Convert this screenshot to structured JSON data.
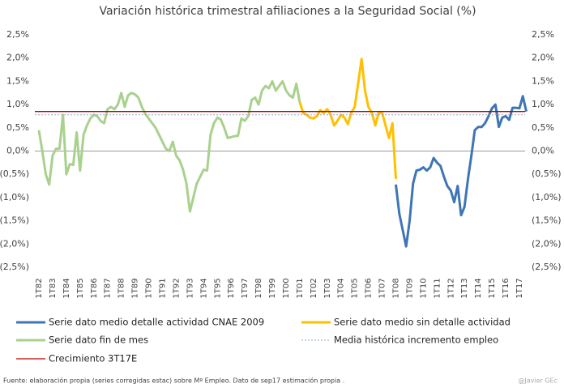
{
  "chart_data": {
    "type": "line",
    "title": "Variación histórica trimestral afiliaciones a la Seguridad Social (%)",
    "categories": [
      "1T82",
      null,
      null,
      null,
      "1T83",
      null,
      null,
      null,
      "1T84",
      null,
      null,
      null,
      "1T85",
      null,
      null,
      null,
      "1T86",
      null,
      null,
      null,
      "1T87",
      null,
      null,
      null,
      "1T88",
      null,
      null,
      null,
      "1T89",
      null,
      null,
      null,
      "1T90",
      null,
      null,
      null,
      "1T91",
      null,
      null,
      null,
      "1T92",
      null,
      null,
      null,
      "1T93",
      null,
      null,
      null,
      "1T94",
      null,
      null,
      null,
      "1T95",
      null,
      null,
      null,
      "1T96",
      null,
      null,
      null,
      "1T97",
      null,
      null,
      null,
      "1T98",
      null,
      null,
      null,
      "1T99",
      null,
      null,
      null,
      "1T00",
      null,
      null,
      null,
      "1T01",
      null,
      null,
      null,
      "1T02",
      null,
      null,
      null,
      "1T03",
      null,
      null,
      null,
      "1T04",
      null,
      null,
      null,
      "1T05",
      null,
      null,
      null,
      "1T06",
      null,
      null,
      null,
      "1T07",
      null,
      null,
      null,
      "1T08",
      null,
      null,
      null,
      "1T09",
      null,
      null,
      null,
      "1T10",
      null,
      null,
      null,
      "1T11",
      null,
      null,
      null,
      "1T12",
      null,
      null,
      null,
      "1T13",
      null,
      null,
      null,
      "1T14",
      null,
      null,
      null,
      "1T15",
      null,
      null,
      null,
      "1T16",
      null,
      null,
      null,
      "1T17",
      null,
      null
    ],
    "series": [
      {
        "name": "Serie dato fin de mes",
        "color": "#a9d18e",
        "values": [
          0.45,
          0.0,
          -0.5,
          -0.72,
          -0.1,
          0.05,
          0.05,
          0.78,
          -0.5,
          -0.28,
          -0.3,
          0.4,
          -0.42,
          0.35,
          0.55,
          0.7,
          0.78,
          0.75,
          0.65,
          0.6,
          0.9,
          0.95,
          0.9,
          1.0,
          1.25,
          0.95,
          1.2,
          1.25,
          1.22,
          1.15,
          0.95,
          0.8,
          0.7,
          0.6,
          0.5,
          0.35,
          0.2,
          0.05,
          0.0,
          0.2,
          -0.1,
          -0.2,
          -0.4,
          -0.7,
          -1.3,
          -1.0,
          -0.7,
          -0.55,
          -0.4,
          -0.42,
          0.35,
          0.6,
          0.72,
          0.68,
          0.5,
          0.28,
          0.3,
          0.32,
          0.33,
          0.7,
          0.65,
          0.75,
          1.1,
          1.15,
          1.0,
          1.3,
          1.4,
          1.35,
          1.5,
          1.3,
          1.4,
          1.5,
          1.3,
          1.2,
          1.15,
          1.45,
          1.05,
          null,
          null,
          null,
          null,
          null,
          null,
          null,
          null,
          null,
          null,
          null,
          null,
          null,
          null,
          null,
          null,
          null,
          null,
          null,
          null,
          null,
          null,
          null,
          null,
          null,
          null,
          null,
          null,
          null,
          null,
          null,
          null,
          null,
          null,
          null,
          null,
          null,
          null,
          null,
          null,
          null,
          null,
          null,
          null,
          null,
          null,
          null,
          null,
          null,
          null,
          null,
          null,
          null,
          null,
          null,
          null,
          null,
          null,
          null,
          null,
          null,
          null,
          null,
          null,
          null,
          null
        ]
      },
      {
        "name": "Serie dato medio sin detalle actividad",
        "color": "#ffc000",
        "values": [
          null,
          null,
          null,
          null,
          null,
          null,
          null,
          null,
          null,
          null,
          null,
          null,
          null,
          null,
          null,
          null,
          null,
          null,
          null,
          null,
          null,
          null,
          null,
          null,
          null,
          null,
          null,
          null,
          null,
          null,
          null,
          null,
          null,
          null,
          null,
          null,
          null,
          null,
          null,
          null,
          null,
          null,
          null,
          null,
          null,
          null,
          null,
          null,
          null,
          null,
          null,
          null,
          null,
          null,
          null,
          null,
          null,
          null,
          null,
          null,
          null,
          null,
          null,
          null,
          null,
          null,
          null,
          null,
          null,
          null,
          null,
          null,
          null,
          null,
          null,
          null,
          1.05,
          0.82,
          0.78,
          0.72,
          0.7,
          0.75,
          0.88,
          0.82,
          0.9,
          0.78,
          0.55,
          0.65,
          0.78,
          0.72,
          0.58,
          0.82,
          0.95,
          1.45,
          1.98,
          1.3,
          0.95,
          0.82,
          0.55,
          0.82,
          0.82,
          0.55,
          0.28,
          0.6,
          -0.6,
          null,
          null,
          null,
          null,
          null,
          null,
          null,
          null,
          null,
          null,
          null,
          null,
          null,
          null,
          null,
          null,
          null,
          null,
          null,
          null,
          null,
          null,
          null,
          null,
          null,
          null,
          null,
          null,
          null,
          null,
          null,
          null,
          null,
          null,
          null,
          null,
          null,
          null
        ]
      },
      {
        "name": "Serie dato medio detalle actividad CNAE 2009",
        "color": "#3e75b5",
        "values": [
          null,
          null,
          null,
          null,
          null,
          null,
          null,
          null,
          null,
          null,
          null,
          null,
          null,
          null,
          null,
          null,
          null,
          null,
          null,
          null,
          null,
          null,
          null,
          null,
          null,
          null,
          null,
          null,
          null,
          null,
          null,
          null,
          null,
          null,
          null,
          null,
          null,
          null,
          null,
          null,
          null,
          null,
          null,
          null,
          null,
          null,
          null,
          null,
          null,
          null,
          null,
          null,
          null,
          null,
          null,
          null,
          null,
          null,
          null,
          null,
          null,
          null,
          null,
          null,
          null,
          null,
          null,
          null,
          null,
          null,
          null,
          null,
          null,
          null,
          null,
          null,
          null,
          null,
          null,
          null,
          null,
          null,
          null,
          null,
          null,
          null,
          null,
          null,
          null,
          null,
          null,
          null,
          null,
          null,
          null,
          null,
          null,
          null,
          null,
          null,
          null,
          null,
          null,
          null,
          -0.72,
          -1.35,
          -1.7,
          -2.05,
          -1.5,
          -0.7,
          -0.42,
          -0.4,
          -0.35,
          -0.42,
          -0.35,
          -0.15,
          -0.25,
          -0.32,
          -0.55,
          -0.75,
          -0.85,
          -1.1,
          -0.75,
          -1.38,
          -1.2,
          -0.6,
          -0.1,
          0.45,
          0.52,
          0.52,
          0.6,
          0.75,
          0.92,
          1.0,
          0.52,
          0.72,
          0.75,
          0.67,
          0.93,
          0.93,
          0.92,
          1.18,
          0.85
        ]
      }
    ],
    "reference_lines": [
      {
        "name": "Media histórica incremento empleo",
        "color": "#8ea9c8",
        "value": 0.78,
        "style": "dotted"
      },
      {
        "name": "Crecimiento 3T17E",
        "color": "#c00000",
        "value": 0.85,
        "style": "solid"
      }
    ],
    "ylim": [
      -2.5,
      2.5
    ],
    "yticks": [
      {
        "value": 2.5,
        "label": "2,5%"
      },
      {
        "value": 2.0,
        "label": "2,0%"
      },
      {
        "value": 1.5,
        "label": "1,5%"
      },
      {
        "value": 1.0,
        "label": "1,0%"
      },
      {
        "value": 0.5,
        "label": "0,5%"
      },
      {
        "value": 0,
        "label": "0,0%"
      },
      {
        "value": -0.5,
        "label": "(0,5%)"
      },
      {
        "value": -1.0,
        "label": "(1,0%)"
      },
      {
        "value": -1.5,
        "label": "(1,5%)"
      },
      {
        "value": -2.0,
        "label": "(2,0%)"
      },
      {
        "value": -2.5,
        "label": "(2,5%)"
      }
    ],
    "y2lim": [
      -2.5,
      2.5
    ],
    "y2ticks": [
      {
        "value": 2.5,
        "label": "2,5%"
      },
      {
        "value": 2.0,
        "label": "2,0%"
      },
      {
        "value": 1.5,
        "label": "1,5%"
      },
      {
        "value": 1.0,
        "label": "1,0%"
      },
      {
        "value": 0.5,
        "label": "0,5%"
      },
      {
        "value": 0,
        "label": "0,0%"
      },
      {
        "value": -0.5,
        "label": "(0,5%)"
      },
      {
        "value": -1.0,
        "label": "(1,0%)"
      },
      {
        "value": -1.5,
        "label": "(1,5%)"
      },
      {
        "value": -2.0,
        "label": "(2,0%)"
      },
      {
        "value": -2.5,
        "label": "(2,5%)"
      }
    ],
    "legend_order": [
      2,
      1,
      0
    ],
    "source": "Fuente: elaboración propia (series corregidas estac) sobre Mº Empleo. Dato de sep17 estimación propia .",
    "credit": "@Javier GEc"
  }
}
